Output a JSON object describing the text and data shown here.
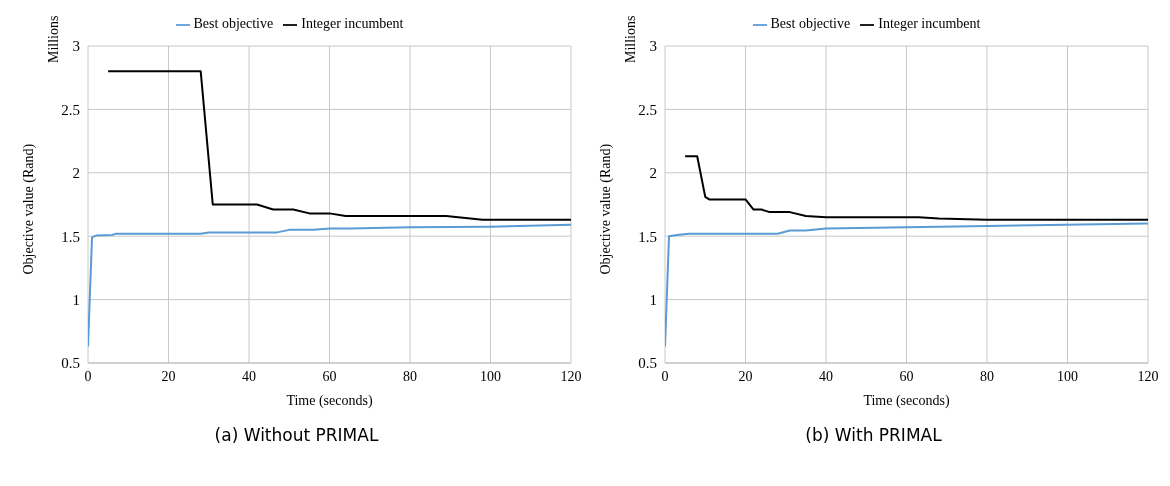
{
  "chart_data": [
    {
      "type": "line",
      "xlabel": "Time (seconds)",
      "ylabel": "Objective value (Rand)",
      "annotations": [
        "Millions",
        "(a) Without PRIMAL"
      ],
      "xlim": [
        0,
        120
      ],
      "xticks": [
        0,
        20,
        40,
        60,
        80,
        100,
        120
      ],
      "ylim": [
        0.5,
        3
      ],
      "yticks": [
        0.5,
        1,
        1.5,
        2,
        2.5,
        3
      ],
      "grid": true,
      "legend": "top",
      "marker": "none",
      "series": [
        {
          "name": "Best objective",
          "color": "#5b9bd5",
          "x": [
            0,
            1,
            2,
            6,
            7,
            28,
            30,
            47,
            50,
            56,
            60,
            65,
            80,
            100,
            120
          ],
          "values": [
            0.63,
            1.49,
            1.505,
            1.51,
            1.52,
            1.52,
            1.53,
            1.53,
            1.55,
            1.55,
            1.56,
            1.56,
            1.57,
            1.575,
            1.59
          ]
        },
        {
          "name": "Integer incumbent",
          "color": "#000000",
          "x": [
            5,
            28,
            31,
            42,
            46,
            51,
            55,
            60,
            64,
            89,
            98,
            120
          ],
          "values": [
            2.8,
            2.8,
            1.75,
            1.75,
            1.71,
            1.71,
            1.68,
            1.68,
            1.66,
            1.66,
            1.63,
            1.63
          ]
        }
      ]
    },
    {
      "type": "line",
      "xlabel": "Time (seconds)",
      "ylabel": "Objective value (Rand)",
      "annotations": [
        "Millions",
        "(b) With PRIMAL"
      ],
      "xlim": [
        0,
        120
      ],
      "xticks": [
        0,
        20,
        40,
        60,
        80,
        100,
        120
      ],
      "ylim": [
        0.5,
        3
      ],
      "yticks": [
        0.5,
        1,
        1.5,
        2,
        2.5,
        3
      ],
      "grid": true,
      "legend": "top",
      "marker": "none",
      "series": [
        {
          "name": "Best objective",
          "color": "#5b9bd5",
          "x": [
            0,
            1,
            3,
            6,
            28,
            31,
            35,
            40,
            60,
            80,
            120
          ],
          "values": [
            0.63,
            1.5,
            1.51,
            1.52,
            1.52,
            1.545,
            1.545,
            1.56,
            1.57,
            1.58,
            1.6
          ]
        },
        {
          "name": "Integer incumbent",
          "color": "#000000",
          "x": [
            5,
            8,
            10,
            11,
            20,
            22,
            24,
            26,
            31,
            35,
            40,
            63,
            68,
            80,
            120
          ],
          "values": [
            2.13,
            2.13,
            1.81,
            1.79,
            1.79,
            1.71,
            1.71,
            1.69,
            1.69,
            1.66,
            1.65,
            1.65,
            1.64,
            1.63,
            1.63
          ]
        }
      ]
    }
  ]
}
